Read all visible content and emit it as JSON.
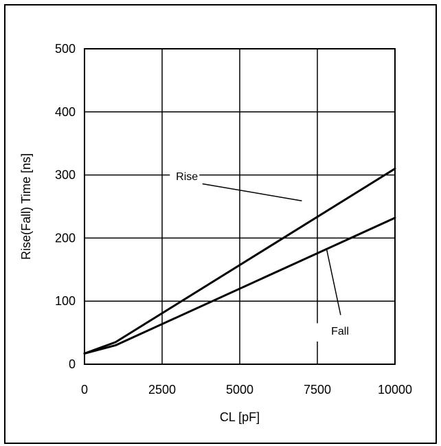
{
  "chart_data": {
    "type": "line",
    "title": "",
    "xlabel": "CL [pF]",
    "ylabel": "Rise(Fall) Time [ns]",
    "xlim": [
      0,
      10000
    ],
    "ylim": [
      0,
      500
    ],
    "x_ticks": [
      0,
      2500,
      5000,
      7500,
      10000
    ],
    "y_ticks": [
      0,
      100,
      200,
      300,
      400,
      500
    ],
    "x_tick_labels": [
      "0",
      "2500",
      "5000",
      "7500",
      "10000"
    ],
    "y_tick_labels": [
      "0",
      "100",
      "200",
      "300",
      "400",
      "500"
    ],
    "grid": true,
    "legend": "none",
    "series": [
      {
        "name": "Rise",
        "x": [
          0,
          1000,
          10000
        ],
        "y": [
          17,
          35,
          310
        ]
      },
      {
        "name": "Fall",
        "x": [
          0,
          1000,
          10000
        ],
        "y": [
          17,
          30,
          232
        ]
      }
    ],
    "annotations": [
      {
        "text": "Rise",
        "series": "Rise"
      },
      {
        "text": "Fall",
        "series": "Fall"
      }
    ],
    "colors": {
      "line": "#000000",
      "grid": "#000000",
      "background": "#ffffff"
    }
  }
}
